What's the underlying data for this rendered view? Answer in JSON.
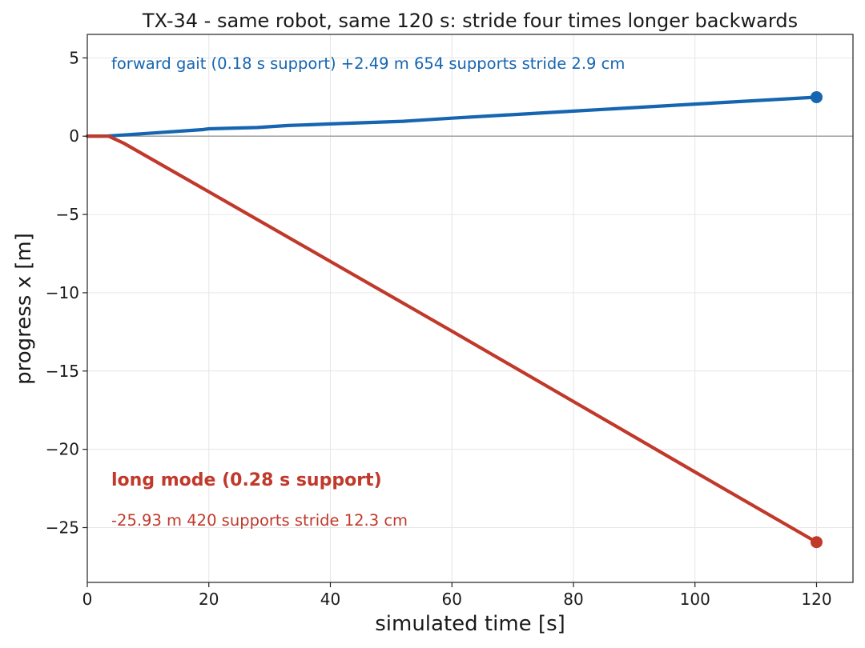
{
  "chart_data": {
    "type": "line",
    "title": "TX-34 - same robot, same 120 s: stride four times longer backwards",
    "xlabel": "simulated time [s]",
    "ylabel": "progress x [m]",
    "xlim": [
      0,
      126
    ],
    "ylim": [
      -28.5,
      6.5
    ],
    "x_ticks": [
      0,
      20,
      40,
      60,
      80,
      100,
      120
    ],
    "y_ticks": [
      5,
      0,
      -5,
      -10,
      -15,
      -20,
      -25
    ],
    "x_tick_labels": [
      "0",
      "20",
      "40",
      "60",
      "80",
      "100",
      "120"
    ],
    "y_tick_labels": [
      "5",
      "0",
      "−5",
      "−10",
      "−15",
      "−20",
      "−25"
    ],
    "grid": true,
    "zero_line": true,
    "series": [
      {
        "color": "#1565b0",
        "x": [
          0,
          3,
          10,
          19,
          20,
          28,
          33,
          40,
          52,
          60,
          80,
          100,
          120
        ],
        "y": [
          0,
          0,
          0.18,
          0.42,
          0.47,
          0.55,
          0.68,
          0.78,
          0.95,
          1.15,
          1.6,
          2.05,
          2.49
        ],
        "end_marker": true
      },
      {
        "color": "#c0392b",
        "x": [
          0,
          3.5,
          6,
          20,
          40,
          60,
          80,
          100,
          120
        ],
        "y": [
          0,
          0,
          -0.45,
          -3.55,
          -8.0,
          -12.45,
          -16.95,
          -21.45,
          -25.93
        ],
        "end_marker": true
      }
    ],
    "annotations": {
      "forward": {
        "text": "forward gait (0.18 s support)   +2.49 m   654 supports   stride 2.9 cm",
        "color": "#1565b0"
      },
      "long_title": {
        "text": "long mode (0.28 s support)",
        "color": "#c0392b"
      },
      "long_stats": {
        "text": "-25.93 m   420 supports   stride 12.3 cm",
        "color": "#c0392b"
      }
    }
  }
}
